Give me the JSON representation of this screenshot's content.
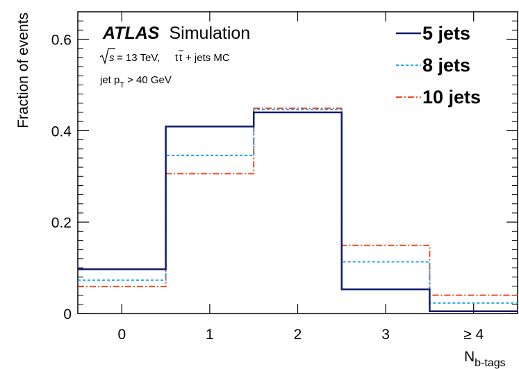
{
  "chart_data": {
    "type": "step-histogram",
    "title": "",
    "experiment": "ATLAS",
    "experiment_suffix": "Simulation",
    "annotations": {
      "energy": "= 13 TeV,",
      "process": "+ jets MC",
      "jet_pt_prefix": "jet p",
      "jet_pt_sub": "T",
      "jet_pt_suffix": "> 40 GeV"
    },
    "xlabel": "N",
    "xlabel_sub": "b-tags",
    "ylabel": "Fraction of events",
    "ylim": [
      0,
      0.66
    ],
    "yticks": [
      "0",
      "0.2",
      "0.4",
      "0.6"
    ],
    "categories": [
      "0",
      "1",
      "2",
      "3",
      "≥ 4"
    ],
    "series": [
      {
        "name": "5 jets",
        "color": "#0d1a6b",
        "style": "solid",
        "values": [
          0.097,
          0.409,
          0.44,
          0.053,
          0.005
        ]
      },
      {
        "name": "8 jets",
        "color": "#29a3e6",
        "style": "dotted",
        "values": [
          0.073,
          0.346,
          0.446,
          0.113,
          0.023
        ]
      },
      {
        "name": "10 jets",
        "color": "#f04a1c",
        "style": "dashdot",
        "values": [
          0.059,
          0.306,
          0.449,
          0.149,
          0.04
        ]
      }
    ],
    "legend_position": "top-right",
    "grid": false
  }
}
